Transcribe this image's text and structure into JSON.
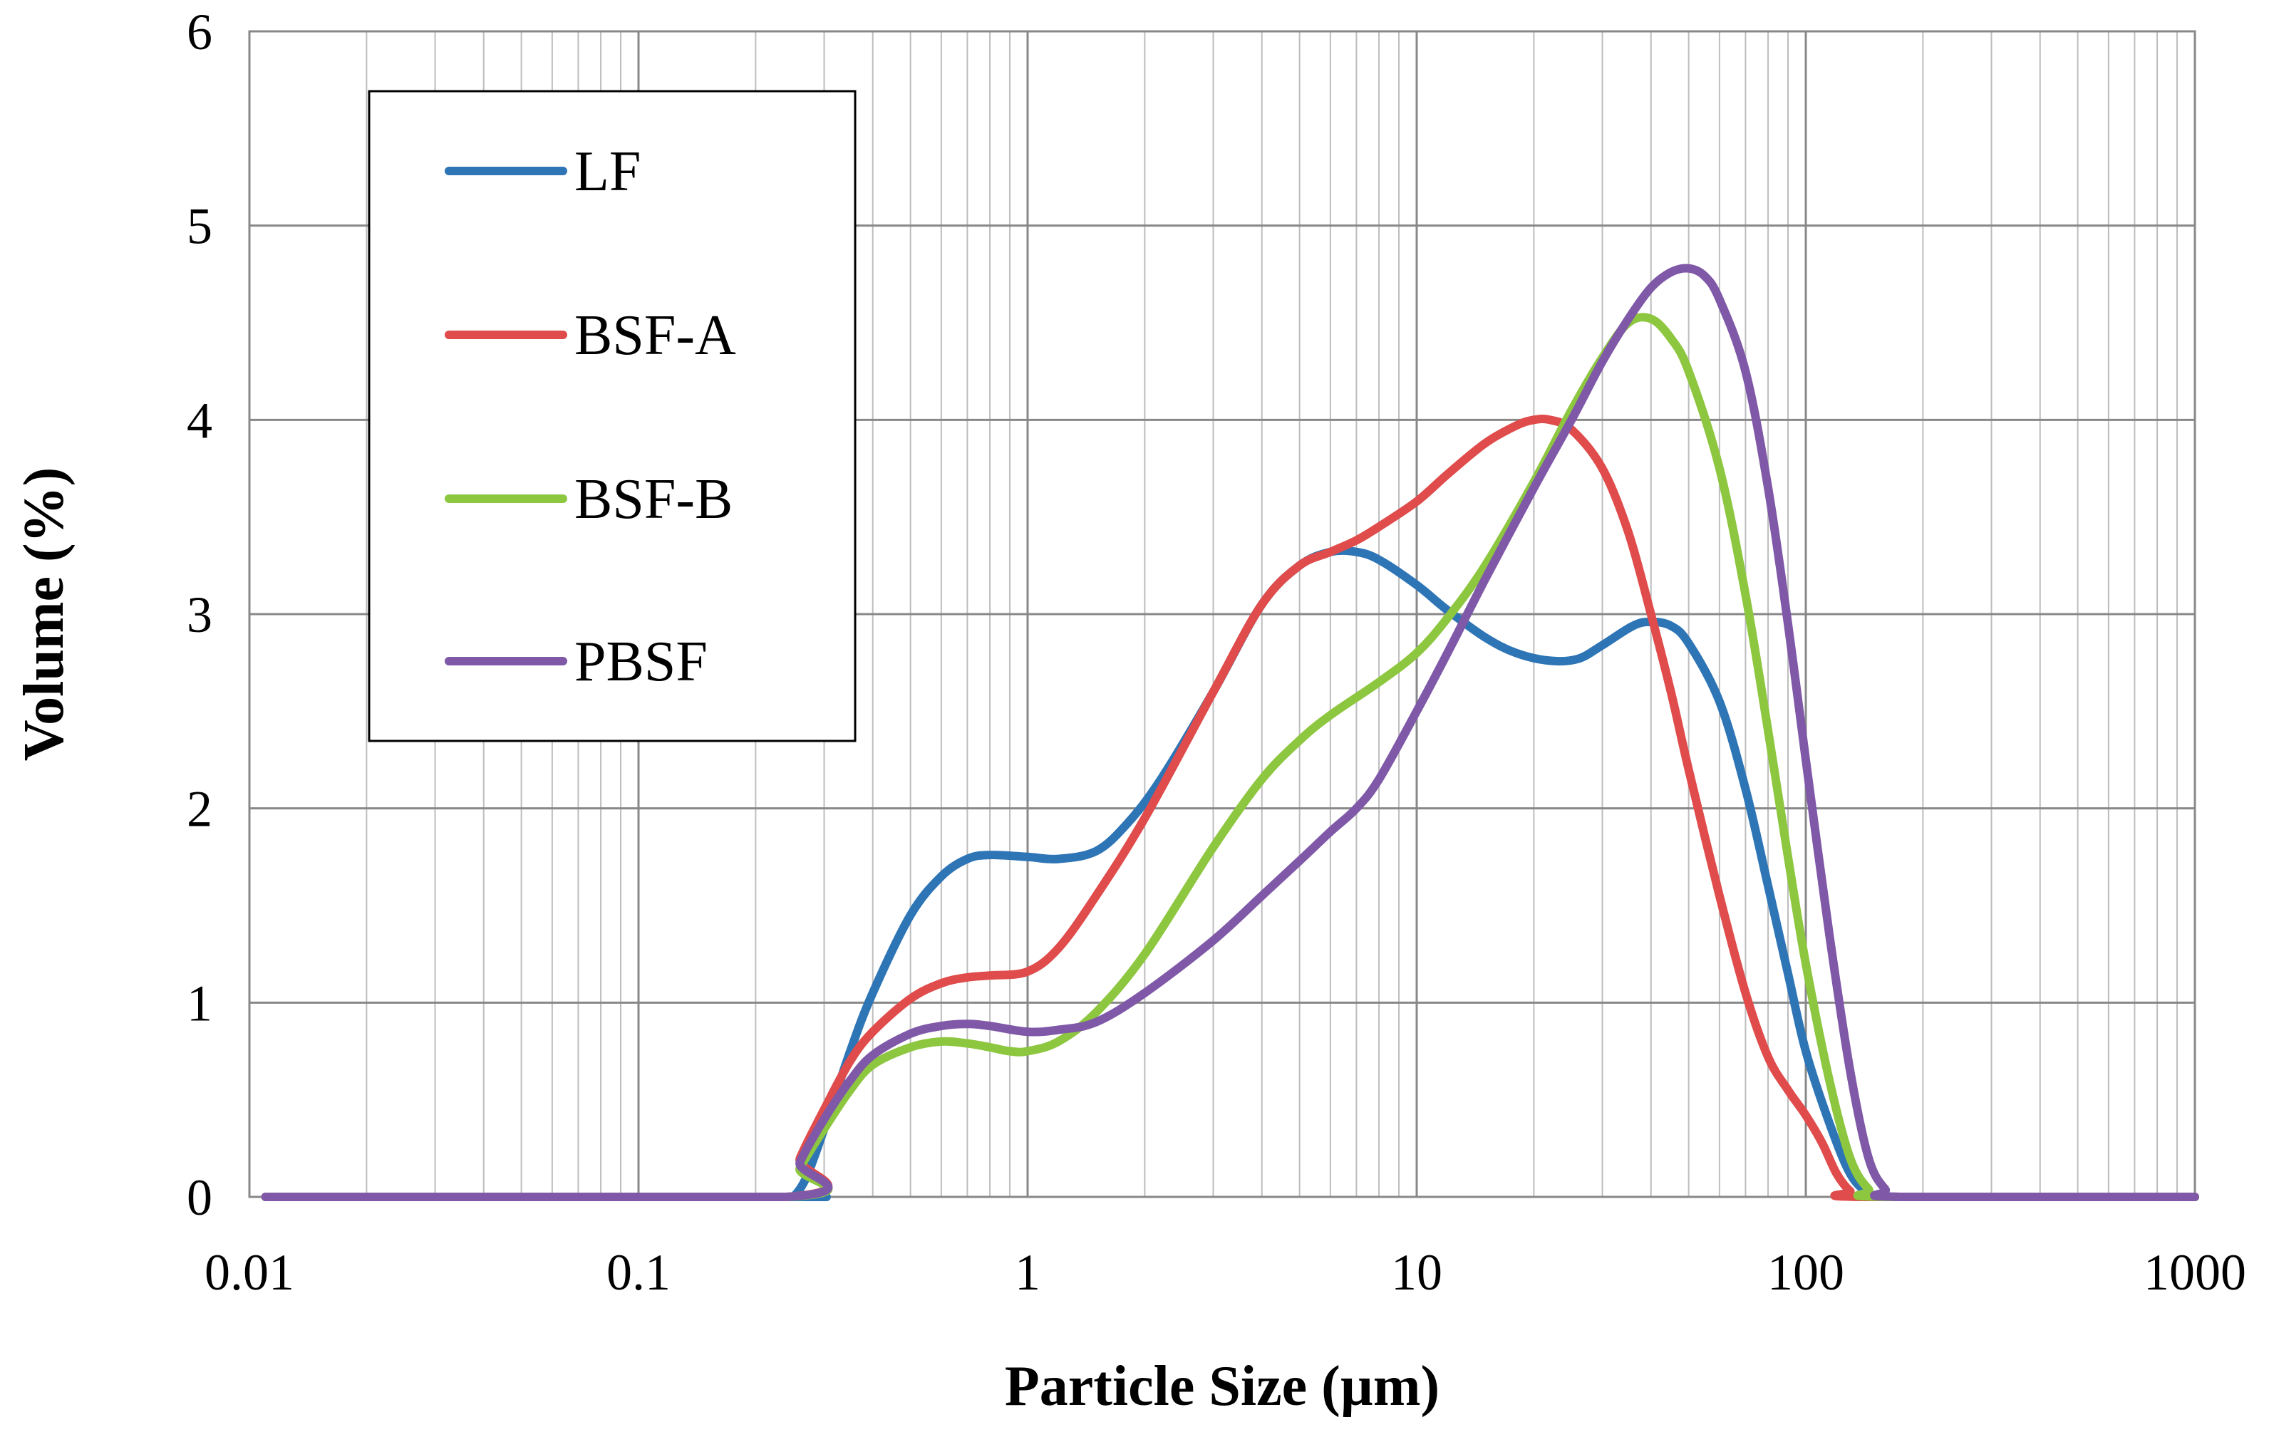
{
  "chart_data": {
    "type": "line",
    "title": "",
    "xlabel": "Particle Size (µm)",
    "ylabel": "Volume (%)",
    "xscale": "log",
    "xlim": [
      0.01,
      1000
    ],
    "ylim": [
      0,
      6
    ],
    "grid": true,
    "legend_position": "top-left",
    "x_ticks": [
      0.01,
      0.1,
      1,
      10,
      100,
      1000
    ],
    "x_tick_labels": [
      "0.01",
      "0.1",
      "1",
      "10",
      "100",
      "1000"
    ],
    "y_ticks": [
      0,
      1,
      2,
      3,
      4,
      5,
      6
    ],
    "y_tick_labels": [
      "0",
      "1",
      "2",
      "3",
      "4",
      "5",
      "6"
    ],
    "series": [
      {
        "name": "LF",
        "color": "#2E75B6",
        "points": [
          [
            0.011,
            0
          ],
          [
            0.24,
            0
          ],
          [
            0.25,
            0
          ],
          [
            0.27,
            0.1
          ],
          [
            0.3,
            0.35
          ],
          [
            0.35,
            0.75
          ],
          [
            0.4,
            1.05
          ],
          [
            0.5,
            1.45
          ],
          [
            0.6,
            1.65
          ],
          [
            0.7,
            1.74
          ],
          [
            0.8,
            1.76
          ],
          [
            1.0,
            1.75
          ],
          [
            1.2,
            1.74
          ],
          [
            1.5,
            1.78
          ],
          [
            1.8,
            1.92
          ],
          [
            2.2,
            2.15
          ],
          [
            3,
            2.6
          ],
          [
            4,
            3.05
          ],
          [
            5,
            3.25
          ],
          [
            6,
            3.32
          ],
          [
            7,
            3.32
          ],
          [
            8,
            3.28
          ],
          [
            10,
            3.15
          ],
          [
            12,
            3.02
          ],
          [
            15,
            2.88
          ],
          [
            18,
            2.8
          ],
          [
            22,
            2.76
          ],
          [
            26,
            2.77
          ],
          [
            30,
            2.84
          ],
          [
            36,
            2.94
          ],
          [
            40,
            2.96
          ],
          [
            45,
            2.94
          ],
          [
            50,
            2.85
          ],
          [
            60,
            2.55
          ],
          [
            70,
            2.1
          ],
          [
            80,
            1.6
          ],
          [
            90,
            1.15
          ],
          [
            100,
            0.75
          ],
          [
            115,
            0.38
          ],
          [
            130,
            0.12
          ],
          [
            145,
            0.02
          ],
          [
            160,
            0
          ],
          [
            1000,
            0
          ]
        ]
      },
      {
        "name": "BSF-A",
        "color": "#E04B4B",
        "points": [
          [
            0.011,
            0
          ],
          [
            0.24,
            0
          ],
          [
            0.26,
            0.2
          ],
          [
            0.3,
            0.45
          ],
          [
            0.35,
            0.7
          ],
          [
            0.4,
            0.85
          ],
          [
            0.5,
            1.02
          ],
          [
            0.6,
            1.1
          ],
          [
            0.7,
            1.13
          ],
          [
            0.8,
            1.14
          ],
          [
            1.0,
            1.16
          ],
          [
            1.2,
            1.28
          ],
          [
            1.5,
            1.55
          ],
          [
            2,
            1.95
          ],
          [
            3,
            2.6
          ],
          [
            4,
            3.05
          ],
          [
            5,
            3.25
          ],
          [
            6,
            3.32
          ],
          [
            7,
            3.38
          ],
          [
            8,
            3.45
          ],
          [
            10,
            3.58
          ],
          [
            12,
            3.72
          ],
          [
            15,
            3.88
          ],
          [
            18,
            3.97
          ],
          [
            20,
            4.0
          ],
          [
            22,
            4.0
          ],
          [
            25,
            3.95
          ],
          [
            30,
            3.75
          ],
          [
            35,
            3.42
          ],
          [
            40,
            3.0
          ],
          [
            45,
            2.6
          ],
          [
            50,
            2.2
          ],
          [
            60,
            1.55
          ],
          [
            70,
            1.05
          ],
          [
            80,
            0.72
          ],
          [
            90,
            0.55
          ],
          [
            100,
            0.42
          ],
          [
            110,
            0.28
          ],
          [
            120,
            0.12
          ],
          [
            130,
            0.03
          ],
          [
            140,
            0
          ],
          [
            1000,
            0
          ]
        ]
      },
      {
        "name": "BSF-B",
        "color": "#8DC63F",
        "points": [
          [
            0.011,
            0
          ],
          [
            0.24,
            0
          ],
          [
            0.26,
            0.15
          ],
          [
            0.3,
            0.35
          ],
          [
            0.35,
            0.55
          ],
          [
            0.4,
            0.68
          ],
          [
            0.5,
            0.77
          ],
          [
            0.6,
            0.8
          ],
          [
            0.7,
            0.79
          ],
          [
            0.8,
            0.77
          ],
          [
            0.9,
            0.75
          ],
          [
            1.0,
            0.75
          ],
          [
            1.2,
            0.8
          ],
          [
            1.5,
            0.95
          ],
          [
            2,
            1.25
          ],
          [
            3,
            1.8
          ],
          [
            4,
            2.15
          ],
          [
            5,
            2.35
          ],
          [
            6,
            2.48
          ],
          [
            8,
            2.65
          ],
          [
            10,
            2.8
          ],
          [
            12,
            2.98
          ],
          [
            15,
            3.25
          ],
          [
            20,
            3.68
          ],
          [
            25,
            4.05
          ],
          [
            30,
            4.32
          ],
          [
            35,
            4.5
          ],
          [
            40,
            4.52
          ],
          [
            45,
            4.42
          ],
          [
            50,
            4.25
          ],
          [
            60,
            3.75
          ],
          [
            70,
            3.1
          ],
          [
            80,
            2.4
          ],
          [
            90,
            1.75
          ],
          [
            100,
            1.2
          ],
          [
            115,
            0.6
          ],
          [
            130,
            0.2
          ],
          [
            145,
            0.04
          ],
          [
            160,
            0
          ],
          [
            1000,
            0
          ]
        ]
      },
      {
        "name": "PBSF",
        "color": "#7F58A8",
        "points": [
          [
            0.011,
            0
          ],
          [
            0.24,
            0
          ],
          [
            0.26,
            0.18
          ],
          [
            0.3,
            0.4
          ],
          [
            0.35,
            0.6
          ],
          [
            0.4,
            0.73
          ],
          [
            0.5,
            0.84
          ],
          [
            0.6,
            0.88
          ],
          [
            0.7,
            0.89
          ],
          [
            0.8,
            0.88
          ],
          [
            1.0,
            0.85
          ],
          [
            1.2,
            0.86
          ],
          [
            1.5,
            0.9
          ],
          [
            2,
            1.05
          ],
          [
            3,
            1.32
          ],
          [
            4,
            1.55
          ],
          [
            5,
            1.73
          ],
          [
            6,
            1.88
          ],
          [
            7,
            2.0
          ],
          [
            8,
            2.15
          ],
          [
            10,
            2.5
          ],
          [
            12,
            2.8
          ],
          [
            15,
            3.18
          ],
          [
            20,
            3.65
          ],
          [
            25,
            4.0
          ],
          [
            30,
            4.3
          ],
          [
            35,
            4.52
          ],
          [
            40,
            4.68
          ],
          [
            45,
            4.76
          ],
          [
            50,
            4.78
          ],
          [
            55,
            4.74
          ],
          [
            60,
            4.62
          ],
          [
            70,
            4.25
          ],
          [
            80,
            3.65
          ],
          [
            90,
            2.95
          ],
          [
            100,
            2.25
          ],
          [
            115,
            1.35
          ],
          [
            130,
            0.65
          ],
          [
            145,
            0.2
          ],
          [
            160,
            0.04
          ],
          [
            175,
            0
          ],
          [
            1000,
            0
          ]
        ]
      }
    ]
  }
}
